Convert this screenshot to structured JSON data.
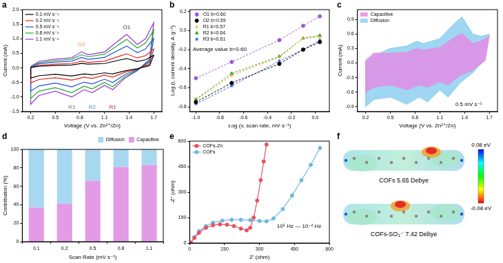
{
  "chart_data": [
    {
      "panel_label": "a",
      "type": "line",
      "xlabel": "Voltage (V vs. Zn²⁺/Zn)",
      "ylabel": "Current (mA)",
      "x": [
        0.2,
        0.3,
        0.5,
        0.7,
        0.82,
        0.9,
        1.1,
        1.3,
        1.37,
        1.5,
        1.6,
        1.7,
        1.7,
        1.65,
        1.5,
        1.35,
        1.2,
        1.1,
        0.95,
        0.85,
        0.7,
        0.5,
        0.3,
        0.2,
        0.2
      ],
      "series": [
        {
          "name": "0.1 mV s⁻¹",
          "color": "#000000",
          "line_style": "solid",
          "values": [
            0.01,
            0.06,
            0.08,
            0.1,
            0.15,
            0.13,
            0.15,
            0.28,
            0.32,
            0.22,
            0.28,
            0.43,
            0.43,
            0.08,
            -0.03,
            -0.1,
            -0.21,
            -0.17,
            -0.24,
            -0.21,
            -0.28,
            -0.22,
            -0.27,
            -0.35,
            0.01
          ]
        },
        {
          "name": "0.2 mV s⁻¹",
          "color": "#e8211a",
          "line_style": "solid",
          "values": [
            0.01,
            0.09,
            0.13,
            0.15,
            0.23,
            0.19,
            0.23,
            0.42,
            0.48,
            0.34,
            0.42,
            0.65,
            0.65,
            0.13,
            -0.04,
            -0.15,
            -0.32,
            -0.25,
            -0.36,
            -0.32,
            -0.42,
            -0.34,
            -0.4,
            -0.52,
            0.01
          ]
        },
        {
          "name": "0.5 mV s⁻¹",
          "color": "#1f4fe0",
          "line_style": "solid",
          "values": [
            0.02,
            0.14,
            0.2,
            0.23,
            0.36,
            0.29,
            0.36,
            0.65,
            0.75,
            0.52,
            0.65,
            1.0,
            1.0,
            0.2,
            -0.06,
            -0.23,
            -0.5,
            -0.39,
            -0.55,
            -0.49,
            -0.65,
            -0.52,
            -0.62,
            -0.8,
            0.02
          ]
        },
        {
          "name": "0.8 mV s⁻¹",
          "color": "#22a822",
          "line_style": "solid",
          "values": [
            0.03,
            0.18,
            0.25,
            0.3,
            0.45,
            0.38,
            0.47,
            0.85,
            0.98,
            0.68,
            0.85,
            1.3,
            1.3,
            0.25,
            -0.08,
            -0.3,
            -0.65,
            -0.5,
            -0.72,
            -0.63,
            -0.85,
            -0.68,
            -0.8,
            -1.05,
            0.03
          ]
        },
        {
          "name": "1.1 mV s⁻¹",
          "color": "#9b30d9",
          "line_style": "solid",
          "values": [
            0.05,
            0.22,
            0.3,
            0.35,
            0.55,
            0.45,
            0.55,
            1.0,
            1.15,
            0.8,
            1.0,
            1.55,
            1.55,
            0.3,
            -0.1,
            -0.35,
            -0.75,
            -0.6,
            -0.85,
            -0.75,
            -1.0,
            -0.8,
            -0.95,
            -1.25,
            0.05
          ]
        }
      ],
      "annotations": [
        {
          "text": "O1",
          "x": 1.37,
          "y": 1.4,
          "color": "#333333"
        },
        {
          "text": "O2",
          "x": 0.82,
          "y": 0.8,
          "color": "#e69a2e"
        },
        {
          "text": "R1",
          "x": 1.2,
          "y": -1.35,
          "color": "#c2185b"
        },
        {
          "text": "R2",
          "x": 0.95,
          "y": -1.35,
          "color": "#4a90d9"
        },
        {
          "text": "R3",
          "x": 0.7,
          "y": -1.35,
          "color": "#777777"
        }
      ],
      "xlim": [
        0.1,
        1.8
      ],
      "xticks": [
        0.2,
        0.5,
        0.8,
        1.1,
        1.4,
        1.7
      ],
      "ylim": [
        -1.5,
        2.0
      ],
      "yticks": [
        -1.5,
        {
          "value": -1.0,
          "label": "-1.0"
        },
        -0.5,
        {
          "value": 0,
          "label": "0.0"
        },
        0.5,
        {
          "value": 1.0,
          "label": "1.0"
        },
        1.5,
        {
          "value": 2.0,
          "label": "2.0"
        }
      ],
      "grid": false,
      "legend": "upper left"
    },
    {
      "panel_label": "b",
      "type": "scatter",
      "xlabel": "Log (v, scan rate, mV s⁻¹)",
      "ylabel": "Log (i, current density, A g⁻¹)",
      "x": [
        -1.0,
        -0.7,
        -0.3,
        -0.1,
        0.04
      ],
      "series": [
        {
          "name": "O1 b=0.60",
          "color": "#9b59d9",
          "marker": "circle",
          "line_style": "dashed",
          "values": [
            -0.5,
            -0.33,
            -0.1,
            0.05,
            0.15
          ]
        },
        {
          "name": "O2 b=0.59",
          "color": "#000000",
          "marker": "circle",
          "line_style": "dashed",
          "values": [
            -0.75,
            -0.55,
            -0.35,
            -0.2,
            -0.12
          ]
        },
        {
          "name": "R1 b=0.57",
          "color": "#f0a020",
          "marker": "cross",
          "line_style": "dashed",
          "values": [
            -0.73,
            -0.47,
            -0.28,
            -0.08,
            -0.07
          ]
        },
        {
          "name": "R2 b=0.64",
          "color": "#2ea02e",
          "marker": "triangle",
          "line_style": "dashed",
          "values": [
            -0.72,
            -0.45,
            -0.27,
            -0.08,
            -0.05
          ]
        },
        {
          "name": "R3 b=0.61",
          "color": "#2a5bd8",
          "marker": "star",
          "line_style": "dashed",
          "values": [
            -0.77,
            -0.58,
            -0.32,
            -0.2,
            -0.1
          ]
        }
      ],
      "annotations": [
        {
          "text": "Average value b=0.60",
          "x": -0.8,
          "y": -0.2,
          "color": "#000000"
        }
      ],
      "xlim": [
        -1.05,
        0.12
      ],
      "xticks": [
        {
          "value": -1.0,
          "label": "-1.0"
        },
        -0.8,
        -0.6,
        -0.4,
        -0.2,
        {
          "value": 0,
          "label": "0.0"
        }
      ],
      "ylim": [
        -0.85,
        0.22
      ],
      "yticks": [
        -0.8,
        -0.6,
        -0.4,
        -0.2,
        {
          "value": 0,
          "label": "0.0"
        },
        0.2
      ],
      "grid": false,
      "legend": "upper left"
    },
    {
      "panel_label": "c",
      "type": "area",
      "xlabel": "Voltage (V vs. Zn²⁺/Zn)",
      "ylabel": "Current (mA)",
      "x": [
        0.2,
        0.3,
        0.5,
        0.7,
        0.82,
        0.9,
        1.1,
        1.3,
        1.37,
        1.5,
        1.6,
        1.7,
        1.7,
        1.65,
        1.5,
        1.35,
        1.2,
        1.1,
        0.95,
        0.85,
        0.7,
        0.5,
        0.3,
        0.2,
        0.2
      ],
      "series": [
        {
          "name": "Capacitive",
          "color": "#e28fe6",
          "type": "area",
          "values": [
            0.05,
            0.2,
            0.2,
            0.22,
            0.3,
            0.27,
            0.32,
            0.55,
            0.6,
            0.4,
            0.45,
            0.55,
            0.55,
            0.05,
            -0.15,
            -0.25,
            -0.45,
            -0.38,
            -0.5,
            -0.45,
            -0.55,
            -0.45,
            -0.5,
            -0.6,
            0.05
          ]
        },
        {
          "name": "Diffusion",
          "color": "#8ecfee",
          "type": "area",
          "values": [
            0.0,
            0.15,
            0.3,
            0.35,
            0.45,
            0.4,
            0.5,
            0.85,
            0.95,
            0.6,
            0.55,
            0.6,
            0.6,
            0.1,
            -0.2,
            -0.4,
            -0.7,
            -0.55,
            -0.8,
            -0.7,
            -0.85,
            -0.7,
            -0.75,
            -0.9,
            0.0
          ]
        }
      ],
      "annotations": [
        {
          "text": "0.5 mV s⁻¹",
          "x": 1.45,
          "y": -0.85,
          "color": "#000000"
        }
      ],
      "xlim": [
        0.1,
        1.8
      ],
      "xticks": [
        0.2,
        0.5,
        0.8,
        1.1,
        1.4,
        1.7
      ],
      "ylim": [
        -1.0,
        1.1
      ],
      "yticks": [
        -0.9,
        -0.6,
        -0.3,
        {
          "value": 0,
          "label": "0.0"
        },
        0.3,
        0.6,
        0.9
      ],
      "grid": false,
      "legend": "upper left"
    },
    {
      "panel_label": "d",
      "type": "bar",
      "xlabel": "Scan Rate (mV s⁻¹)",
      "ylabel": "Contribution (%)",
      "categories": [
        "0.1",
        "0.2",
        "0.5",
        "0.8",
        "1.1"
      ],
      "series": [
        {
          "name": "Capacitive",
          "color": "#e39be6",
          "values": [
            37,
            41,
            66,
            81,
            83
          ]
        },
        {
          "name": "Diffusion",
          "color": "#a8d8f0",
          "values": [
            63,
            59,
            34,
            19,
            17
          ]
        }
      ],
      "stacked": true,
      "ylim": [
        0,
        100
      ],
      "yticks": [
        0,
        20,
        40,
        60,
        80,
        100
      ],
      "grid": false,
      "legend": "top"
    },
    {
      "panel_label": "e",
      "type": "line",
      "xlabel": "Z' (ohm)",
      "ylabel": "-Z'' (ohm)",
      "series": [
        {
          "name": "COFs-Zn",
          "color": "#e8505b",
          "marker": "circle",
          "line_style": "solid",
          "x": [
            5,
            20,
            40,
            70,
            100,
            130,
            160,
            190,
            220,
            245,
            260,
            275,
            290,
            305,
            318,
            330
          ],
          "values": [
            2,
            30,
            60,
            90,
            105,
            110,
            108,
            100,
            85,
            75,
            90,
            150,
            250,
            370,
            480,
            580
          ]
        },
        {
          "name": "COFs",
          "color": "#6cb8e0",
          "marker": "circle",
          "line_style": "solid",
          "x": [
            5,
            20,
            40,
            70,
            100,
            140,
            180,
            220,
            260,
            300,
            330,
            360,
            400,
            440,
            480,
            520,
            560
          ],
          "values": [
            2,
            35,
            70,
            100,
            120,
            132,
            137,
            137,
            135,
            130,
            128,
            145,
            200,
            280,
            370,
            460,
            560
          ]
        }
      ],
      "annotations": [
        {
          "text": "10⁵ Hz — 10⁻² Hz",
          "x": 470,
          "y": 100,
          "color": "#000000"
        }
      ],
      "xlim": [
        0,
        600
      ],
      "xticks": [
        0,
        150,
        300,
        450,
        600
      ],
      "ylim": [
        0,
        600
      ],
      "yticks": [
        0,
        150,
        300,
        450,
        600
      ],
      "grid": false,
      "legend": "upper left"
    }
  ],
  "panel_f": {
    "panel_label": "f",
    "molecules": [
      {
        "label": "COFs 5.65 Debye"
      },
      {
        "label": "COFs-SO₃⁻ 7.42 Debye"
      }
    ],
    "colorbar": {
      "range": [
        -0.08,
        0.08
      ],
      "ticks": [
        {
          "value": 0.08,
          "label": "0.08 eV"
        },
        {
          "value": -0.08,
          "label": "-0.08 eV"
        }
      ],
      "colors": [
        "#ff0000",
        "#ffff00",
        "#00ff00",
        "#00ffff",
        "#0000ff"
      ]
    }
  }
}
